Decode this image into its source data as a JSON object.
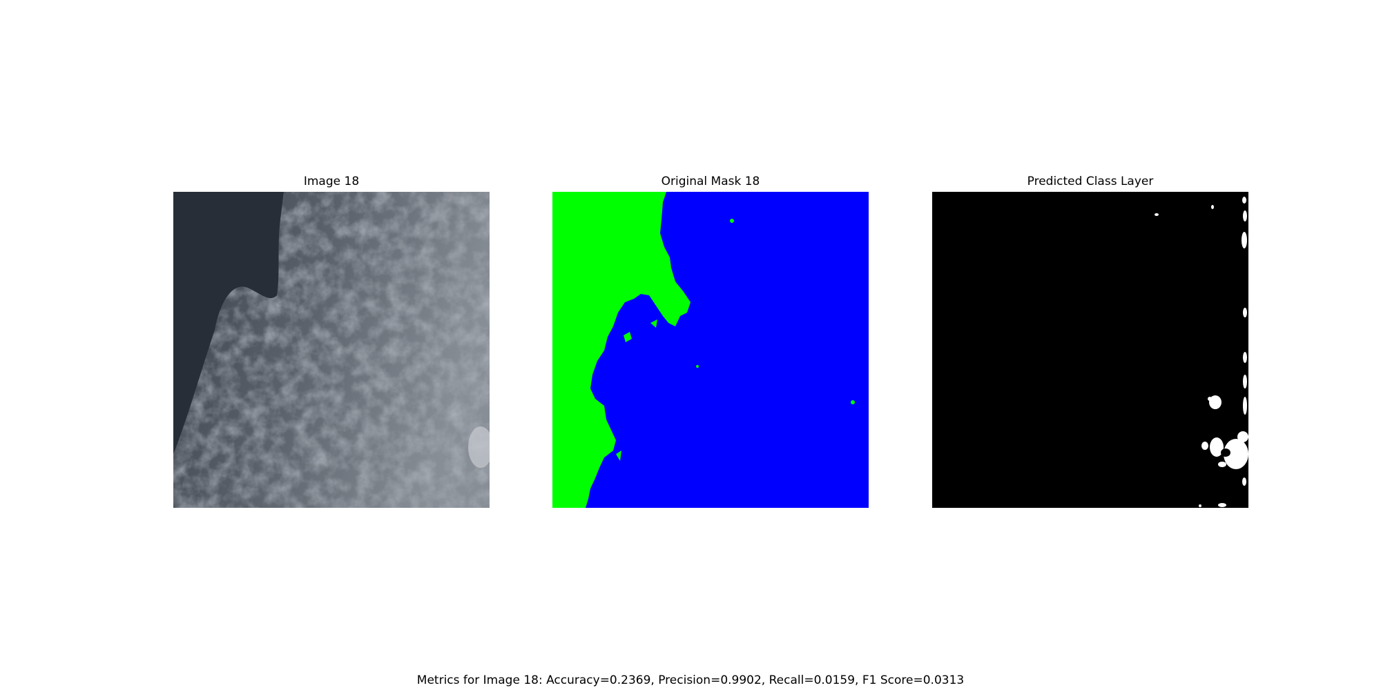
{
  "panels": [
    {
      "title": "Image 18",
      "content": "satellite cloud image",
      "colors": {
        "dark_area": "#272e38",
        "cloud_light": "#9aa0a8",
        "cloud_mid": "#6c727b"
      }
    },
    {
      "title": "Original Mask 18",
      "content": "segmentation mask",
      "colors": {
        "class_a": "#00ff00",
        "class_b": "#0000ff"
      }
    },
    {
      "title": "Predicted Class Layer",
      "content": "binary prediction",
      "colors": {
        "background": "#000000",
        "foreground": "#ffffff"
      }
    }
  ],
  "metrics_text": "Metrics for Image 18: Accuracy=0.2369, Precision=0.9902, Recall=0.0159, F1 Score=0.0313",
  "metrics": {
    "image": 18,
    "accuracy": 0.2369,
    "precision": 0.9902,
    "recall": 0.0159,
    "f1_score": 0.0313
  }
}
